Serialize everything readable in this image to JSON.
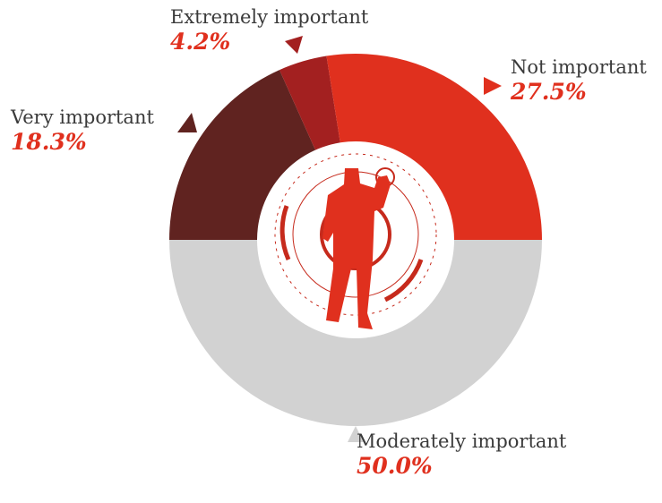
{
  "chart_data": {
    "type": "pie",
    "categories": [
      "Moderately important",
      "Very important",
      "Extremely important",
      "Not important"
    ],
    "values": [
      50.0,
      18.3,
      4.2,
      27.5
    ],
    "value_labels": [
      "50.0%",
      "18.3%",
      "4.2%",
      "27.5%"
    ],
    "colors": [
      "#d2d2d2",
      "#602320",
      "#a32020",
      "#e0301e"
    ]
  }
}
